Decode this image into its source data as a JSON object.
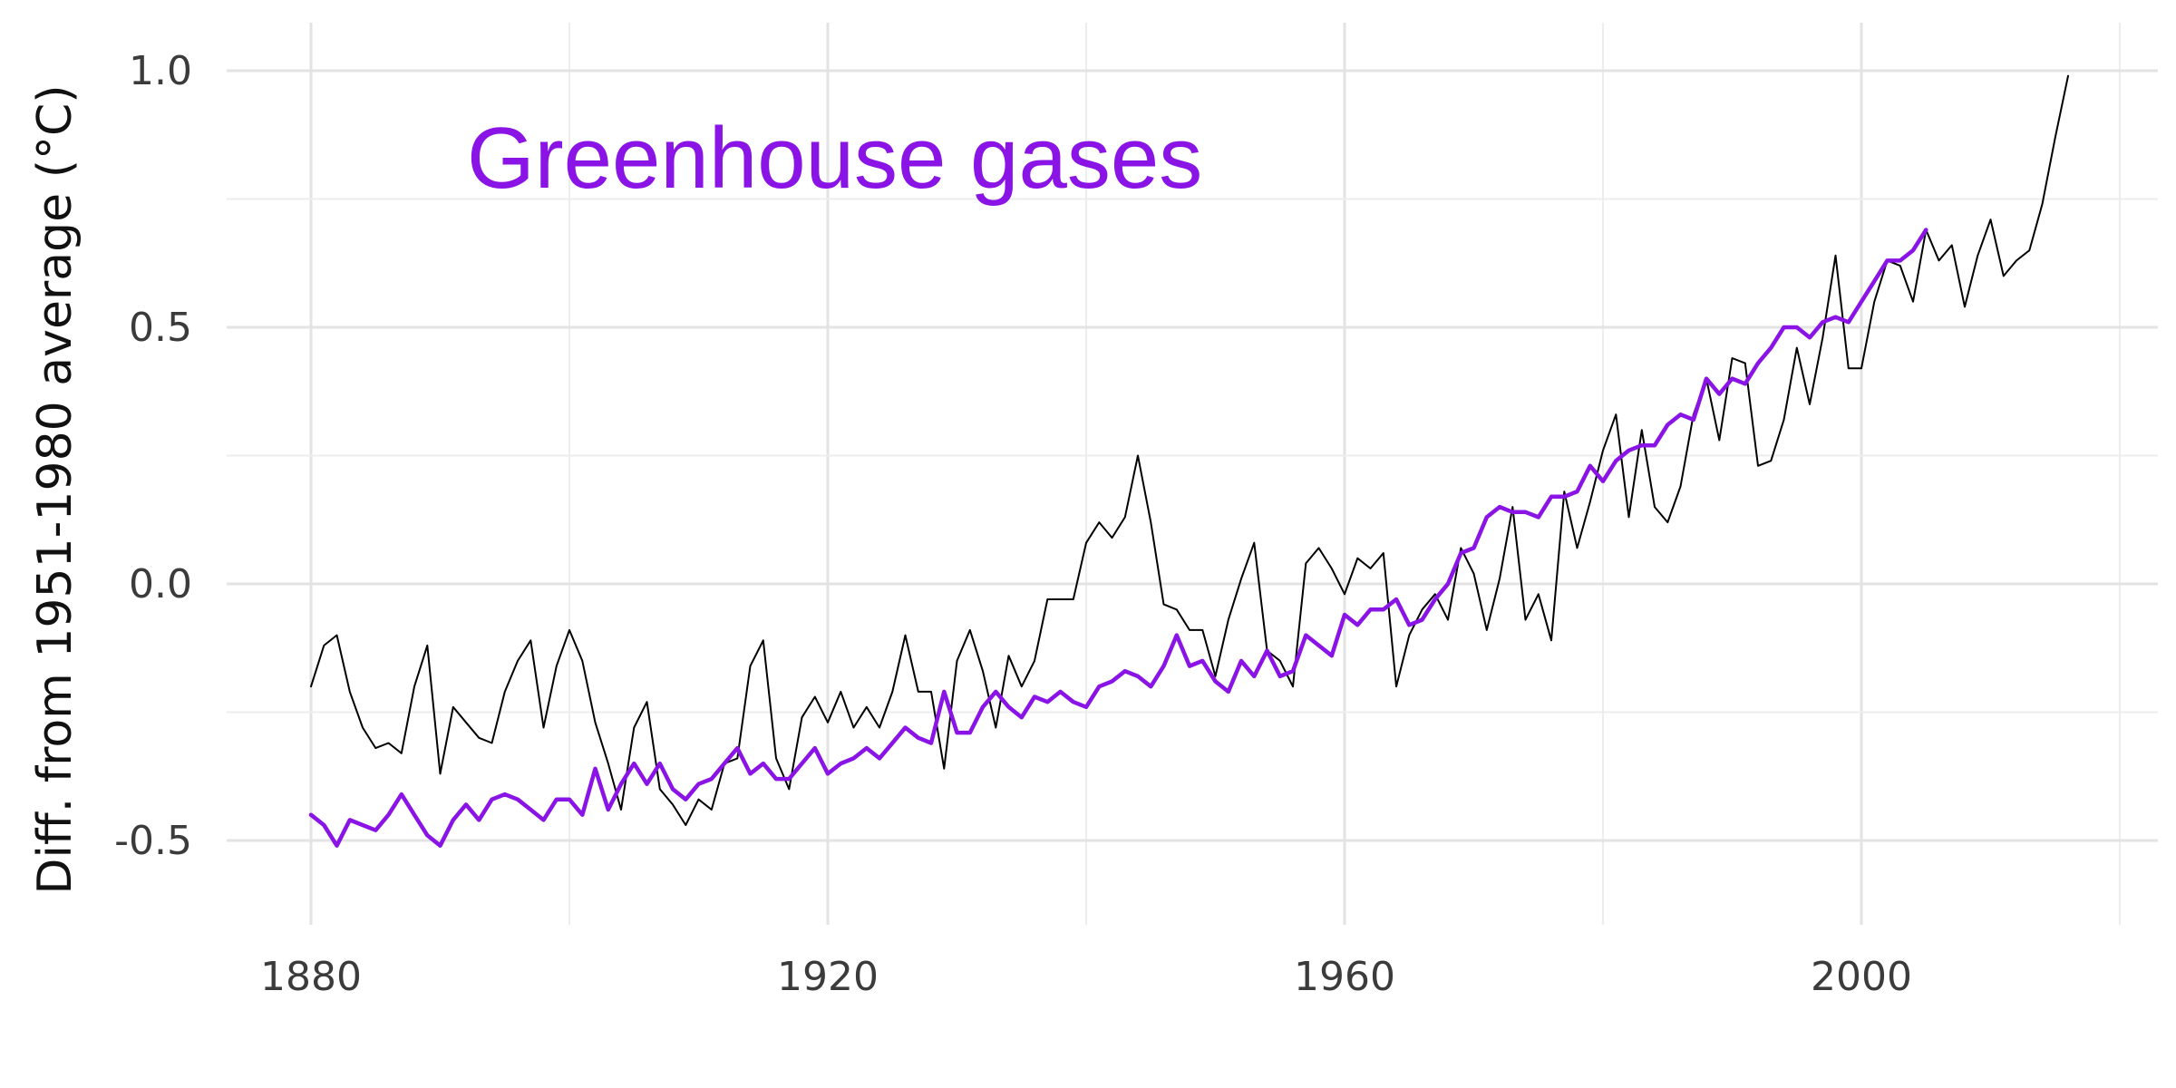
{
  "chart_data": {
    "type": "line",
    "title": "",
    "xlabel": "",
    "ylabel": "Diff. from 1951-1980 average (°C)",
    "xlim": [
      1880,
      2020
    ],
    "ylim": [
      -0.65,
      1.02
    ],
    "x_ticks": [
      1880,
      1920,
      1960,
      2000
    ],
    "x_tick_labels": [
      "1880",
      "1920",
      "1960",
      "2000"
    ],
    "y_ticks": [
      -0.5,
      0.0,
      0.5,
      1.0
    ],
    "y_tick_labels": [
      "-0.5",
      "0.0",
      "0.5",
      "1.0"
    ],
    "grid": true,
    "annotation": {
      "text": "Greenhouse gases",
      "color": "#8a13e6"
    },
    "series": [
      {
        "role": "observed",
        "color": "#000000",
        "x": [
          1880,
          1881,
          1882,
          1883,
          1884,
          1885,
          1886,
          1887,
          1888,
          1889,
          1890,
          1891,
          1892,
          1893,
          1894,
          1895,
          1896,
          1897,
          1898,
          1899,
          1900,
          1901,
          1902,
          1903,
          1904,
          1905,
          1906,
          1907,
          1908,
          1909,
          1910,
          1911,
          1912,
          1913,
          1914,
          1915,
          1916,
          1917,
          1918,
          1919,
          1920,
          1921,
          1922,
          1923,
          1924,
          1925,
          1926,
          1927,
          1928,
          1929,
          1930,
          1931,
          1932,
          1933,
          1934,
          1935,
          1936,
          1937,
          1938,
          1939,
          1940,
          1941,
          1942,
          1943,
          1944,
          1945,
          1946,
          1947,
          1948,
          1949,
          1950,
          1951,
          1952,
          1953,
          1954,
          1955,
          1956,
          1957,
          1958,
          1959,
          1960,
          1961,
          1962,
          1963,
          1964,
          1965,
          1966,
          1967,
          1968,
          1969,
          1970,
          1971,
          1972,
          1973,
          1974,
          1975,
          1976,
          1977,
          1978,
          1979,
          1980,
          1981,
          1982,
          1983,
          1984,
          1985,
          1986,
          1987,
          1988,
          1989,
          1990,
          1991,
          1992,
          1993,
          1994,
          1995,
          1996,
          1997,
          1998,
          1999,
          2000,
          2001,
          2002,
          2003,
          2004,
          2005,
          2006,
          2007,
          2008,
          2009,
          2010,
          2011,
          2012,
          2013,
          2014,
          2015,
          2016
        ],
        "y": [
          -0.2,
          -0.12,
          -0.1,
          -0.21,
          -0.28,
          -0.32,
          -0.31,
          -0.33,
          -0.2,
          -0.12,
          -0.37,
          -0.24,
          -0.27,
          -0.3,
          -0.31,
          -0.21,
          -0.15,
          -0.11,
          -0.28,
          -0.16,
          -0.09,
          -0.15,
          -0.27,
          -0.35,
          -0.44,
          -0.28,
          -0.23,
          -0.4,
          -0.43,
          -0.47,
          -0.42,
          -0.44,
          -0.35,
          -0.34,
          -0.16,
          -0.11,
          -0.34,
          -0.4,
          -0.26,
          -0.22,
          -0.27,
          -0.21,
          -0.28,
          -0.24,
          -0.28,
          -0.21,
          -0.1,
          -0.21,
          -0.21,
          -0.36,
          -0.15,
          -0.09,
          -0.17,
          -0.28,
          -0.14,
          -0.2,
          -0.15,
          -0.03,
          -0.03,
          -0.03,
          0.08,
          0.12,
          0.09,
          0.13,
          0.25,
          0.12,
          -0.04,
          -0.05,
          -0.09,
          -0.09,
          -0.18,
          -0.07,
          0.01,
          0.08,
          -0.13,
          -0.15,
          -0.2,
          0.04,
          0.07,
          0.03,
          -0.02,
          0.05,
          0.03,
          0.06,
          -0.2,
          -0.1,
          -0.05,
          -0.02,
          -0.07,
          0.07,
          0.02,
          -0.09,
          0.01,
          0.15,
          -0.07,
          -0.02,
          -0.11,
          0.18,
          0.07,
          0.16,
          0.26,
          0.33,
          0.13,
          0.3,
          0.15,
          0.12,
          0.19,
          0.33,
          0.4,
          0.28,
          0.44,
          0.43,
          0.23,
          0.24,
          0.32,
          0.46,
          0.35,
          0.48,
          0.64,
          0.42,
          0.42,
          0.55,
          0.63,
          0.62,
          0.55,
          0.69,
          0.63,
          0.66,
          0.54,
          0.64,
          0.71,
          0.6,
          0.63,
          0.65,
          0.74,
          0.87,
          0.99
        ]
      },
      {
        "role": "greenhouse-gases",
        "color": "#8a13e6",
        "x": [
          1880,
          1881,
          1882,
          1883,
          1884,
          1885,
          1886,
          1887,
          1888,
          1889,
          1890,
          1891,
          1892,
          1893,
          1894,
          1895,
          1896,
          1897,
          1898,
          1899,
          1900,
          1901,
          1902,
          1903,
          1904,
          1905,
          1906,
          1907,
          1908,
          1909,
          1910,
          1911,
          1912,
          1913,
          1914,
          1915,
          1916,
          1917,
          1918,
          1919,
          1920,
          1921,
          1922,
          1923,
          1924,
          1925,
          1926,
          1927,
          1928,
          1929,
          1930,
          1931,
          1932,
          1933,
          1934,
          1935,
          1936,
          1937,
          1938,
          1939,
          1940,
          1941,
          1942,
          1943,
          1944,
          1945,
          1946,
          1947,
          1948,
          1949,
          1950,
          1951,
          1952,
          1953,
          1954,
          1955,
          1956,
          1957,
          1958,
          1959,
          1960,
          1961,
          1962,
          1963,
          1964,
          1965,
          1966,
          1967,
          1968,
          1969,
          1970,
          1971,
          1972,
          1973,
          1974,
          1975,
          1976,
          1977,
          1978,
          1979,
          1980,
          1981,
          1982,
          1983,
          1984,
          1985,
          1986,
          1987,
          1988,
          1989,
          1990,
          1991,
          1992,
          1993,
          1994,
          1995,
          1996,
          1997,
          1998,
          1999,
          2000,
          2001,
          2002,
          2003,
          2004,
          2005
        ],
        "y": [
          -0.45,
          -0.47,
          -0.51,
          -0.46,
          -0.47,
          -0.48,
          -0.45,
          -0.41,
          -0.45,
          -0.49,
          -0.51,
          -0.46,
          -0.43,
          -0.46,
          -0.42,
          -0.41,
          -0.42,
          -0.44,
          -0.46,
          -0.42,
          -0.42,
          -0.45,
          -0.36,
          -0.44,
          -0.39,
          -0.35,
          -0.39,
          -0.35,
          -0.4,
          -0.42,
          -0.39,
          -0.38,
          -0.35,
          -0.32,
          -0.37,
          -0.35,
          -0.38,
          -0.38,
          -0.35,
          -0.32,
          -0.37,
          -0.35,
          -0.34,
          -0.32,
          -0.34,
          -0.31,
          -0.28,
          -0.3,
          -0.31,
          -0.21,
          -0.29,
          -0.29,
          -0.24,
          -0.21,
          -0.24,
          -0.26,
          -0.22,
          -0.23,
          -0.21,
          -0.23,
          -0.24,
          -0.2,
          -0.19,
          -0.17,
          -0.18,
          -0.2,
          -0.16,
          -0.1,
          -0.16,
          -0.15,
          -0.19,
          -0.21,
          -0.15,
          -0.18,
          -0.13,
          -0.18,
          -0.17,
          -0.1,
          -0.12,
          -0.14,
          -0.06,
          -0.08,
          -0.05,
          -0.05,
          -0.03,
          -0.08,
          -0.07,
          -0.03,
          0.0,
          0.06,
          0.07,
          0.13,
          0.15,
          0.14,
          0.14,
          0.13,
          0.17,
          0.17,
          0.18,
          0.23,
          0.2,
          0.24,
          0.26,
          0.27,
          0.27,
          0.31,
          0.33,
          0.32,
          0.4,
          0.37,
          0.4,
          0.39,
          0.43,
          0.46,
          0.5,
          0.5,
          0.48,
          0.51,
          0.52,
          0.51,
          0.55,
          0.59,
          0.63,
          0.63,
          0.65,
          0.69
        ]
      }
    ]
  }
}
